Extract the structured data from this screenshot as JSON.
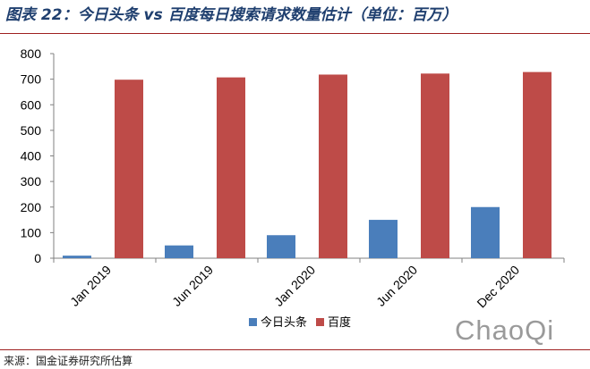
{
  "title": "图表 22：今日头条 vs 百度每日搜索请求数量估计（单位：百万）",
  "source": "来源：国金证券研究所估算",
  "watermark": "ChaoQi",
  "chart_data": {
    "type": "bar",
    "categories": [
      "Jan 2019",
      "Jun 2019",
      "Jan 2020",
      "Jun 2020",
      "Dec 2020"
    ],
    "series": [
      {
        "name": "今日头条",
        "values": [
          10,
          50,
          90,
          150,
          200
        ],
        "color": "#4a7ebb"
      },
      {
        "name": "百度",
        "values": [
          698,
          707,
          718,
          722,
          728
        ],
        "color": "#be4b48"
      }
    ],
    "yticks": [
      0,
      100,
      200,
      300,
      400,
      500,
      600,
      700,
      800
    ],
    "ylim": [
      0,
      800
    ],
    "grid": false,
    "legend_position": "bottom-center"
  }
}
